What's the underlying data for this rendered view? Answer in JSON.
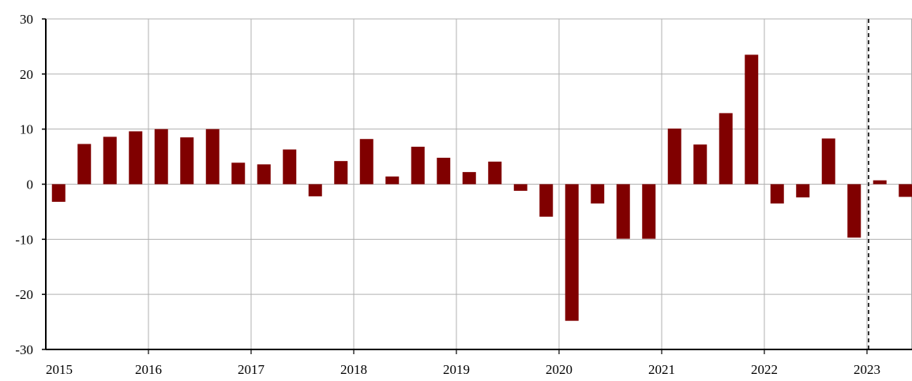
{
  "chart_data": {
    "type": "bar",
    "title": "",
    "xlabel": "",
    "ylabel": "",
    "ylim": [
      -30,
      30
    ],
    "yticks": [
      -30,
      -20,
      -10,
      0,
      10,
      20,
      30
    ],
    "year_labels": [
      "2015",
      "2016",
      "2017",
      "2018",
      "2019",
      "2020",
      "2021",
      "2022",
      "2023"
    ],
    "grid": true,
    "bar_color": "#800000",
    "forecast_divider_after_bar": 31,
    "values": [
      -3.2,
      7.3,
      8.6,
      9.6,
      10.0,
      8.5,
      10.0,
      3.9,
      3.6,
      6.3,
      -2.2,
      4.2,
      8.2,
      1.4,
      6.8,
      4.8,
      2.2,
      4.1,
      -1.2,
      -5.9,
      -24.8,
      -3.5,
      -9.9,
      -9.9,
      10.1,
      7.2,
      12.9,
      23.5,
      -3.5,
      -2.4,
      8.3,
      -9.7,
      0.7,
      -2.3
    ]
  }
}
